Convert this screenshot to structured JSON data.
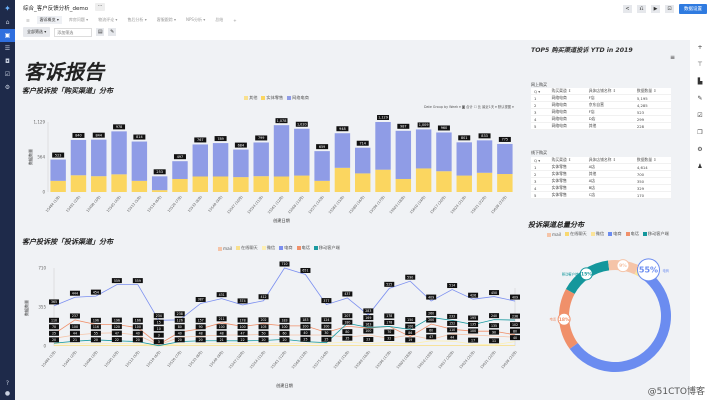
{
  "app": {
    "title": "综合_客户反馈分析_demo",
    "more": "···"
  },
  "sidebar": {
    "icons": [
      "logo-icon",
      "home-icon",
      "dashboard-icon",
      "list-icon",
      "box-icon",
      "check-icon",
      "gear-icon"
    ],
    "bottom": [
      "help-icon",
      "user-icon"
    ]
  },
  "tabs": [
    {
      "label": "客诉概览 ▾",
      "active": true
    },
    {
      "label": "库房问题 ▾"
    },
    {
      "label": "物流评论 ▾"
    },
    {
      "label": "售后分析 ▾"
    },
    {
      "label": "客服跟踪 ▾"
    },
    {
      "label": "NPS分析 ▾"
    },
    {
      "label": "总结"
    },
    {
      "label": "+"
    }
  ],
  "filters": {
    "all": "全部筛选 ▾",
    "placeholder": "添加筛选"
  },
  "topbar": {
    "share": "<",
    "edit": "⎌",
    "play": "▶",
    "expand": "⊡",
    "dataset": "数据设置"
  },
  "report_title": "客诉报告",
  "chart1": {
    "title": "客户投诉按「购买渠道」分布",
    "options": "Date Group by Week ▾  ◙ 合计  ☐ 比  最近1天 ▾  默认视图 ▾"
  },
  "chart2": {
    "title": "客户投诉按「投诉渠道」分布"
  },
  "chart_data": [
    {
      "type": "bar",
      "stacked": true,
      "xlabel": "创建日期",
      "ylabel": "数据数量",
      "yticks": [
        "0",
        "564",
        "1,129"
      ],
      "ylim": [
        0,
        1129
      ],
      "categories": [
        "15484 (1月)",
        "15491 (2月)",
        "15498 (3月)",
        "15505 (4月)",
        "15512 (5月)",
        "15519 (6月)",
        "15526 (7月)",
        "15533 (8月)",
        "15540 (9月)",
        "15547 (10月)",
        "15554 (11月)",
        "15561 (12月)",
        "15568 (13月)",
        "15575 (14月)",
        "15582 (15月)",
        "15589 (16月)",
        "15596 (17月)",
        "15603 (18月)",
        "15610 (19月)",
        "15617 (20月)",
        "15624 (21月)",
        "15631 (22月)",
        "15638 (23月)"
      ],
      "totals": [
        "523",
        "840",
        "844",
        "978",
        "814",
        "253",
        "497",
        "767",
        "789",
        "684",
        "799",
        "1,078",
        "1,020",
        "659",
        "948",
        "714",
        "1,129",
        "987",
        "1,009",
        "960",
        "801",
        "833",
        "775"
      ],
      "series": [
        {
          "name": "其他",
          "values": [
            0,
            0,
            0,
            0,
            0,
            0,
            0,
            0,
            0,
            0,
            0,
            0,
            0,
            0,
            0,
            0,
            0,
            0,
            0,
            0,
            0,
            0,
            0
          ]
        },
        {
          "name": "实体零售",
          "values": [
            180,
            270,
            255,
            285,
            180,
            30,
            210,
            250,
            250,
            240,
            255,
            250,
            265,
            180,
            390,
            300,
            360,
            210,
            380,
            335,
            265,
            310,
            290
          ]
        },
        {
          "name": "网络电商",
          "values": [
            343,
            570,
            589,
            693,
            634,
            223,
            287,
            517,
            539,
            444,
            544,
            828,
            755,
            479,
            558,
            414,
            769,
            777,
            629,
            625,
            536,
            523,
            485
          ]
        }
      ],
      "colors": [
        "#f8e08e",
        "#fbd660",
        "#8f9ce6"
      ],
      "legend": "top-right"
    },
    {
      "type": "line",
      "xlabel": "创建日期",
      "ylabel": "数据数量",
      "yticks": [
        "0",
        "355",
        "710"
      ],
      "ylim": [
        0,
        710
      ],
      "series": [
        {
          "name": "mail",
          "color": "#f5c4a8",
          "values": [
            70,
            100,
            116,
            120,
            100,
            10,
            80,
            90,
            100,
            100,
            105,
            100,
            100,
            100,
            80,
            100,
            70,
            100,
            60,
            110,
            100,
            90,
            80
          ]
        },
        {
          "name": "在线聊天",
          "color": "#f8e08e",
          "values": [
            5,
            5,
            5,
            5,
            5,
            1,
            5,
            5,
            5,
            5,
            5,
            5,
            5,
            5,
            5,
            5,
            5,
            5,
            5,
            5,
            5,
            5,
            5
          ]
        },
        {
          "name": "微信",
          "color": "#fdefb2",
          "values": [
            20,
            21,
            20,
            22,
            20,
            3,
            20,
            20,
            21,
            22,
            20,
            20,
            25,
            25,
            35,
            23,
            32,
            19,
            47,
            44,
            17,
            11,
            40
          ]
        },
        {
          "name": "电商",
          "color": "#7b8ff0",
          "values": [
            365,
            444,
            454,
            559,
            559,
            234,
            238,
            387,
            431,
            374,
            412,
            710,
            651,
            377,
            437,
            283,
            525,
            590,
            409,
            514,
            426,
            450,
            409
          ]
        },
        {
          "name": "电话",
          "color": "#f0906a",
          "values": [
            110,
            237,
            196,
            196,
            166,
            15,
            126,
            157,
            211,
            178,
            202,
            183,
            183,
            124,
            180,
            163,
            178,
            86,
            200,
            152,
            135,
            135,
            102
          ]
        },
        {
          "name": "移动客户端",
          "color": "#1a9aa0",
          "values": [
            25,
            44,
            55,
            47,
            40,
            3,
            40,
            48,
            48,
            47,
            50,
            60,
            40,
            30,
            207,
            169,
            178,
            150,
            260,
            233,
            195,
            240,
            236
          ]
        }
      ]
    },
    {
      "type": "pie",
      "donut": true,
      "title": "投诉渠道总量分布",
      "legend": "top",
      "slices": [
        {
          "name": "电商",
          "value": 55,
          "color": "#6b8cf0"
        },
        {
          "name": "电话",
          "value": 18,
          "color": "#f0906a"
        },
        {
          "name": "移动客户端",
          "value": 15,
          "color": "#14979c"
        },
        {
          "name": "mail",
          "value": 9,
          "color": "#f5c4a8"
        },
        {
          "name": "微信",
          "value": 2,
          "color": "#fbe49a"
        },
        {
          "name": "在线聊天",
          "value": 1,
          "color": "#f8d870"
        }
      ],
      "labels": [
        "55%",
        "18%",
        "15%",
        "9%"
      ]
    }
  ],
  "right": {
    "title": "TOP5 购买渠道投诉 YTD in 2019",
    "online": {
      "label": "网上购买",
      "headers": [
        "Q ▾",
        "购买渠道 ⇕",
        "具体店铺名称 ⇕",
        "数据数量 ⇕"
      ],
      "rows": [
        [
          "1",
          "网络电商",
          "F店",
          "5,195"
        ],
        [
          "2",
          "网络电商",
          "京东自营",
          "4,285"
        ],
        [
          "3",
          "网络电商",
          "F店",
          "523"
        ],
        [
          "4",
          "网络电商",
          "D店",
          "299"
        ],
        [
          "5",
          "网络电商",
          "其他",
          "228"
        ]
      ]
    },
    "offline": {
      "label": "线下购买",
      "headers": [
        "Q ▾",
        "购买渠道 ⇕",
        "具体店铺名称 ⇕",
        "数据数量 ⇕"
      ],
      "rows": [
        [
          "1",
          "实体零售",
          "A店",
          "4,614"
        ],
        [
          "2",
          "实体零售",
          "其他",
          "700"
        ],
        [
          "3",
          "实体零售",
          "A店",
          "350"
        ],
        [
          "4",
          "实体零售",
          "B店",
          "329"
        ],
        [
          "5",
          "实体零售",
          "C店",
          "170"
        ]
      ]
    }
  },
  "watermark": "@51CTO博客"
}
